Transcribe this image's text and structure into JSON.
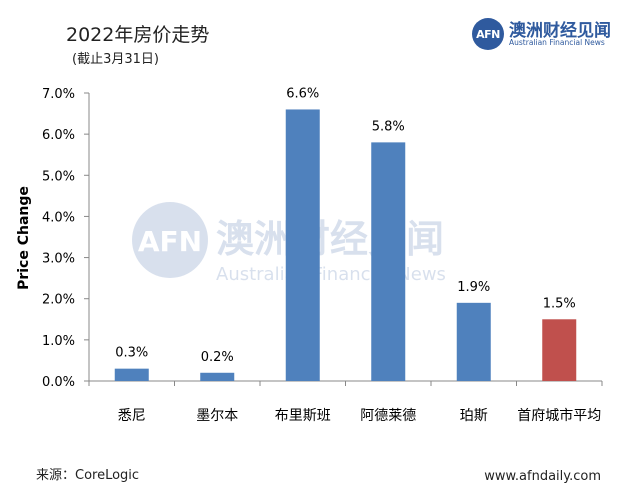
{
  "header": {
    "title": "2022年房价走势",
    "subtitle": "(截止3月31日)"
  },
  "brand": {
    "badge": "AFN",
    "name_cn": "澳洲财经见闻",
    "name_en": "Australian Financial News"
  },
  "watermark": {
    "badge": "AFN",
    "name_cn": "澳洲财经见闻",
    "name_en": "Australian Financial News"
  },
  "footer": {
    "source": "来源：CoreLogic",
    "site": "www.afndaily.com"
  },
  "chart_data": {
    "type": "bar",
    "categories": [
      "悉尼",
      "墨尔本",
      "布里斯班",
      "阿德莱德",
      "珀斯",
      "首府城市平均"
    ],
    "values": [
      0.3,
      0.2,
      6.6,
      5.8,
      1.9,
      1.5
    ],
    "value_labels": [
      "0.3%",
      "0.2%",
      "6.6%",
      "5.8%",
      "1.9%",
      "1.5%"
    ],
    "bar_colors": [
      "#4f81bd",
      "#4f81bd",
      "#4f81bd",
      "#4f81bd",
      "#4f81bd",
      "#c0504d"
    ],
    "ylabel": "Price Change",
    "ylim": [
      0,
      7
    ],
    "yticks": [
      "0.0%",
      "1.0%",
      "2.0%",
      "3.0%",
      "4.0%",
      "5.0%",
      "6.0%",
      "7.0%"
    ],
    "grid": false,
    "legend": "none"
  }
}
